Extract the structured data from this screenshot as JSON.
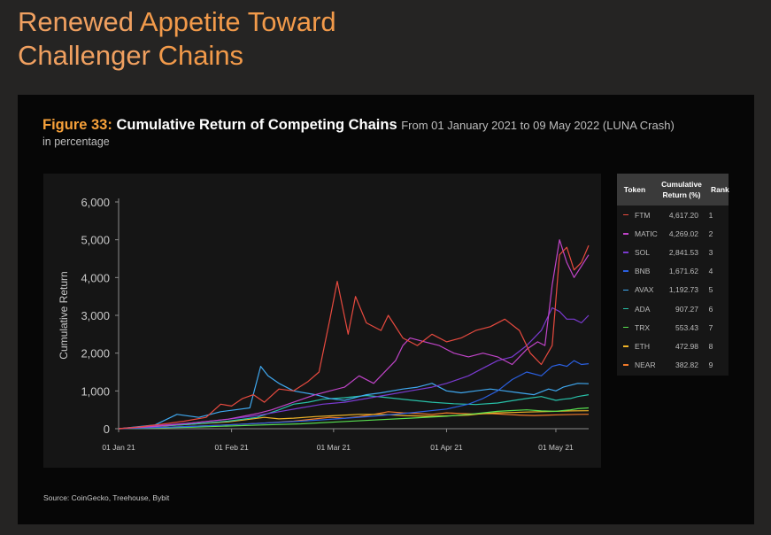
{
  "page": {
    "title_line1_a": "Renewed",
    "title_line1_b": "Appetite Toward",
    "title_line2_a": "Challenger",
    "title_line2_b": "Chains"
  },
  "figure": {
    "number": "Figure 33:",
    "title": "Cumulative Return of Competing Chains",
    "range": "From 01 January 2021 to 09 May 2022 (LUNA Crash)",
    "subtitle": "in percentage",
    "source": "Source: CoinGecko, Treehouse, Bybit"
  },
  "legend": {
    "header_token": "Token",
    "header_return_1": "Cumulative",
    "header_return_2": "Return (%)",
    "header_rank": "Rank",
    "rows": [
      {
        "name": "FTM",
        "value": "4,617.20",
        "rank": "1",
        "color": "#e84a3f"
      },
      {
        "name": "MATIC",
        "value": "4,269.02",
        "rank": "2",
        "color": "#c044c8"
      },
      {
        "name": "SOL",
        "value": "2,841.53",
        "rank": "3",
        "color": "#7a3ad0"
      },
      {
        "name": "BNB",
        "value": "1,671.62",
        "rank": "4",
        "color": "#2a5fe0"
      },
      {
        "name": "AVAX",
        "value": "1,192.73",
        "rank": "5",
        "color": "#3fa8f0"
      },
      {
        "name": "ADA",
        "value": "907.27",
        "rank": "6",
        "color": "#28c0a8"
      },
      {
        "name": "TRX",
        "value": "553.43",
        "rank": "7",
        "color": "#58e050"
      },
      {
        "name": "ETH",
        "value": "472.98",
        "rank": "8",
        "color": "#f0b428"
      },
      {
        "name": "NEAR",
        "value": "382.82",
        "rank": "9",
        "color": "#f07a2a"
      }
    ]
  },
  "chart_data": {
    "type": "line",
    "title": "Cumulative Return of Competing Chains",
    "xlabel": "",
    "ylabel": "Cumulative Return",
    "ylim": [
      0,
      6000
    ],
    "yticks": [
      0,
      1000,
      2000,
      3000,
      4000,
      5000,
      6000
    ],
    "ytick_labels": [
      "0",
      "1,000",
      "2,000",
      "3,000",
      "4,000",
      "5,000",
      "6,000"
    ],
    "xlim": [
      0,
      129
    ],
    "xticks": [
      {
        "x": 0,
        "label": "01 Jan 21"
      },
      {
        "x": 31,
        "label": "01 Feb 21"
      },
      {
        "x": 59,
        "label": "01 Mar 21"
      },
      {
        "x": 90,
        "label": "01 Apr 21"
      },
      {
        "x": 120,
        "label": "01 May 21"
      }
    ],
    "series": [
      {
        "name": "FTM",
        "color": "#e84a3f",
        "points": [
          [
            0,
            0
          ],
          [
            6,
            50
          ],
          [
            12,
            120
          ],
          [
            18,
            200
          ],
          [
            24,
            300
          ],
          [
            28,
            650
          ],
          [
            31,
            600
          ],
          [
            34,
            800
          ],
          [
            37,
            900
          ],
          [
            40,
            700
          ],
          [
            44,
            1050
          ],
          [
            48,
            1000
          ],
          [
            52,
            1250
          ],
          [
            55,
            1500
          ],
          [
            58,
            2900
          ],
          [
            60,
            3900
          ],
          [
            63,
            2500
          ],
          [
            65,
            3500
          ],
          [
            68,
            2800
          ],
          [
            72,
            2600
          ],
          [
            74,
            3000
          ],
          [
            78,
            2400
          ],
          [
            82,
            2200
          ],
          [
            86,
            2500
          ],
          [
            90,
            2300
          ],
          [
            94,
            2400
          ],
          [
            98,
            2600
          ],
          [
            102,
            2700
          ],
          [
            106,
            2900
          ],
          [
            110,
            2600
          ],
          [
            113,
            2000
          ],
          [
            116,
            1700
          ],
          [
            119,
            2200
          ],
          [
            121,
            4600
          ],
          [
            123,
            4800
          ],
          [
            125,
            4200
          ],
          [
            127,
            4400
          ],
          [
            129,
            4850
          ]
        ]
      },
      {
        "name": "MATIC",
        "color": "#c044c8",
        "points": [
          [
            0,
            0
          ],
          [
            10,
            60
          ],
          [
            20,
            150
          ],
          [
            30,
            250
          ],
          [
            38,
            400
          ],
          [
            42,
            500
          ],
          [
            48,
            700
          ],
          [
            54,
            900
          ],
          [
            58,
            1000
          ],
          [
            62,
            1100
          ],
          [
            66,
            1400
          ],
          [
            70,
            1200
          ],
          [
            74,
            1600
          ],
          [
            76,
            1800
          ],
          [
            78,
            2200
          ],
          [
            80,
            2400
          ],
          [
            84,
            2300
          ],
          [
            88,
            2200
          ],
          [
            92,
            2000
          ],
          [
            96,
            1900
          ],
          [
            100,
            2000
          ],
          [
            104,
            1900
          ],
          [
            108,
            1700
          ],
          [
            112,
            2100
          ],
          [
            115,
            2300
          ],
          [
            117,
            2200
          ],
          [
            119,
            3800
          ],
          [
            121,
            5000
          ],
          [
            123,
            4400
          ],
          [
            125,
            4000
          ],
          [
            127,
            4300
          ],
          [
            129,
            4600
          ]
        ]
      },
      {
        "name": "SOL",
        "color": "#7a3ad0",
        "points": [
          [
            0,
            0
          ],
          [
            10,
            80
          ],
          [
            20,
            150
          ],
          [
            30,
            250
          ],
          [
            38,
            350
          ],
          [
            44,
            450
          ],
          [
            50,
            550
          ],
          [
            56,
            650
          ],
          [
            62,
            700
          ],
          [
            68,
            800
          ],
          [
            74,
            900
          ],
          [
            80,
            1000
          ],
          [
            86,
            1100
          ],
          [
            90,
            1200
          ],
          [
            96,
            1400
          ],
          [
            100,
            1600
          ],
          [
            104,
            1800
          ],
          [
            108,
            1900
          ],
          [
            112,
            2200
          ],
          [
            116,
            2600
          ],
          [
            119,
            3200
          ],
          [
            121,
            3100
          ],
          [
            123,
            2900
          ],
          [
            125,
            2900
          ],
          [
            127,
            2800
          ],
          [
            129,
            3000
          ]
        ]
      },
      {
        "name": "BNB",
        "color": "#2a5fe0",
        "points": [
          [
            0,
            0
          ],
          [
            10,
            30
          ],
          [
            20,
            60
          ],
          [
            30,
            100
          ],
          [
            40,
            150
          ],
          [
            50,
            200
          ],
          [
            60,
            260
          ],
          [
            70,
            330
          ],
          [
            80,
            420
          ],
          [
            90,
            520
          ],
          [
            96,
            650
          ],
          [
            100,
            800
          ],
          [
            104,
            1000
          ],
          [
            108,
            1300
          ],
          [
            112,
            1500
          ],
          [
            116,
            1400
          ],
          [
            119,
            1650
          ],
          [
            121,
            1700
          ],
          [
            123,
            1650
          ],
          [
            125,
            1800
          ],
          [
            127,
            1700
          ],
          [
            129,
            1720
          ]
        ]
      },
      {
        "name": "AVAX",
        "color": "#3fa8f0",
        "points": [
          [
            0,
            0
          ],
          [
            10,
            100
          ],
          [
            16,
            380
          ],
          [
            22,
            300
          ],
          [
            28,
            450
          ],
          [
            32,
            500
          ],
          [
            36,
            550
          ],
          [
            39,
            1650
          ],
          [
            41,
            1400
          ],
          [
            44,
            1200
          ],
          [
            48,
            1000
          ],
          [
            54,
            900
          ],
          [
            58,
            800
          ],
          [
            62,
            750
          ],
          [
            68,
            900
          ],
          [
            72,
            950
          ],
          [
            78,
            1050
          ],
          [
            82,
            1100
          ],
          [
            86,
            1200
          ],
          [
            90,
            1000
          ],
          [
            94,
            950
          ],
          [
            98,
            1000
          ],
          [
            102,
            1050
          ],
          [
            106,
            1000
          ],
          [
            110,
            950
          ],
          [
            114,
            900
          ],
          [
            118,
            1050
          ],
          [
            120,
            1000
          ],
          [
            122,
            1100
          ],
          [
            124,
            1150
          ],
          [
            126,
            1200
          ],
          [
            129,
            1190
          ]
        ]
      },
      {
        "name": "ADA",
        "color": "#28c0a8",
        "points": [
          [
            0,
            0
          ],
          [
            10,
            60
          ],
          [
            20,
            120
          ],
          [
            30,
            200
          ],
          [
            38,
            300
          ],
          [
            44,
            500
          ],
          [
            48,
            650
          ],
          [
            52,
            700
          ],
          [
            56,
            780
          ],
          [
            62,
            820
          ],
          [
            68,
            880
          ],
          [
            74,
            820
          ],
          [
            80,
            760
          ],
          [
            86,
            700
          ],
          [
            92,
            660
          ],
          [
            98,
            640
          ],
          [
            104,
            680
          ],
          [
            108,
            740
          ],
          [
            112,
            800
          ],
          [
            116,
            850
          ],
          [
            120,
            750
          ],
          [
            122,
            780
          ],
          [
            124,
            800
          ],
          [
            126,
            850
          ],
          [
            129,
            900
          ]
        ]
      },
      {
        "name": "TRX",
        "color": "#58e050",
        "points": [
          [
            0,
            0
          ],
          [
            10,
            20
          ],
          [
            20,
            40
          ],
          [
            30,
            70
          ],
          [
            40,
            100
          ],
          [
            50,
            130
          ],
          [
            60,
            180
          ],
          [
            70,
            230
          ],
          [
            80,
            280
          ],
          [
            90,
            330
          ],
          [
            96,
            380
          ],
          [
            100,
            420
          ],
          [
            104,
            460
          ],
          [
            108,
            480
          ],
          [
            112,
            500
          ],
          [
            116,
            470
          ],
          [
            120,
            460
          ],
          [
            122,
            480
          ],
          [
            124,
            500
          ],
          [
            126,
            530
          ],
          [
            129,
            550
          ]
        ]
      },
      {
        "name": "ETH",
        "color": "#f0b428",
        "points": [
          [
            0,
            0
          ],
          [
            10,
            60
          ],
          [
            20,
            120
          ],
          [
            30,
            180
          ],
          [
            36,
            250
          ],
          [
            40,
            300
          ],
          [
            44,
            260
          ],
          [
            48,
            280
          ],
          [
            54,
            320
          ],
          [
            60,
            350
          ],
          [
            66,
            380
          ],
          [
            72,
            380
          ],
          [
            78,
            350
          ],
          [
            84,
            330
          ],
          [
            90,
            340
          ],
          [
            96,
            360
          ],
          [
            100,
            400
          ],
          [
            104,
            420
          ],
          [
            108,
            430
          ],
          [
            112,
            440
          ],
          [
            116,
            450
          ],
          [
            120,
            460
          ],
          [
            124,
            470
          ],
          [
            129,
            475
          ]
        ]
      },
      {
        "name": "NEAR",
        "color": "#f07a2a",
        "points": [
          [
            0,
            0
          ],
          [
            10,
            30
          ],
          [
            20,
            60
          ],
          [
            30,
            100
          ],
          [
            40,
            150
          ],
          [
            48,
            200
          ],
          [
            54,
            260
          ],
          [
            58,
            300
          ],
          [
            62,
            280
          ],
          [
            66,
            320
          ],
          [
            70,
            380
          ],
          [
            74,
            450
          ],
          [
            78,
            420
          ],
          [
            82,
            400
          ],
          [
            86,
            380
          ],
          [
            90,
            420
          ],
          [
            94,
            400
          ],
          [
            98,
            390
          ],
          [
            102,
            400
          ],
          [
            106,
            380
          ],
          [
            110,
            360
          ],
          [
            114,
            350
          ],
          [
            118,
            360
          ],
          [
            122,
            370
          ],
          [
            126,
            380
          ],
          [
            129,
            383
          ]
        ]
      }
    ]
  }
}
